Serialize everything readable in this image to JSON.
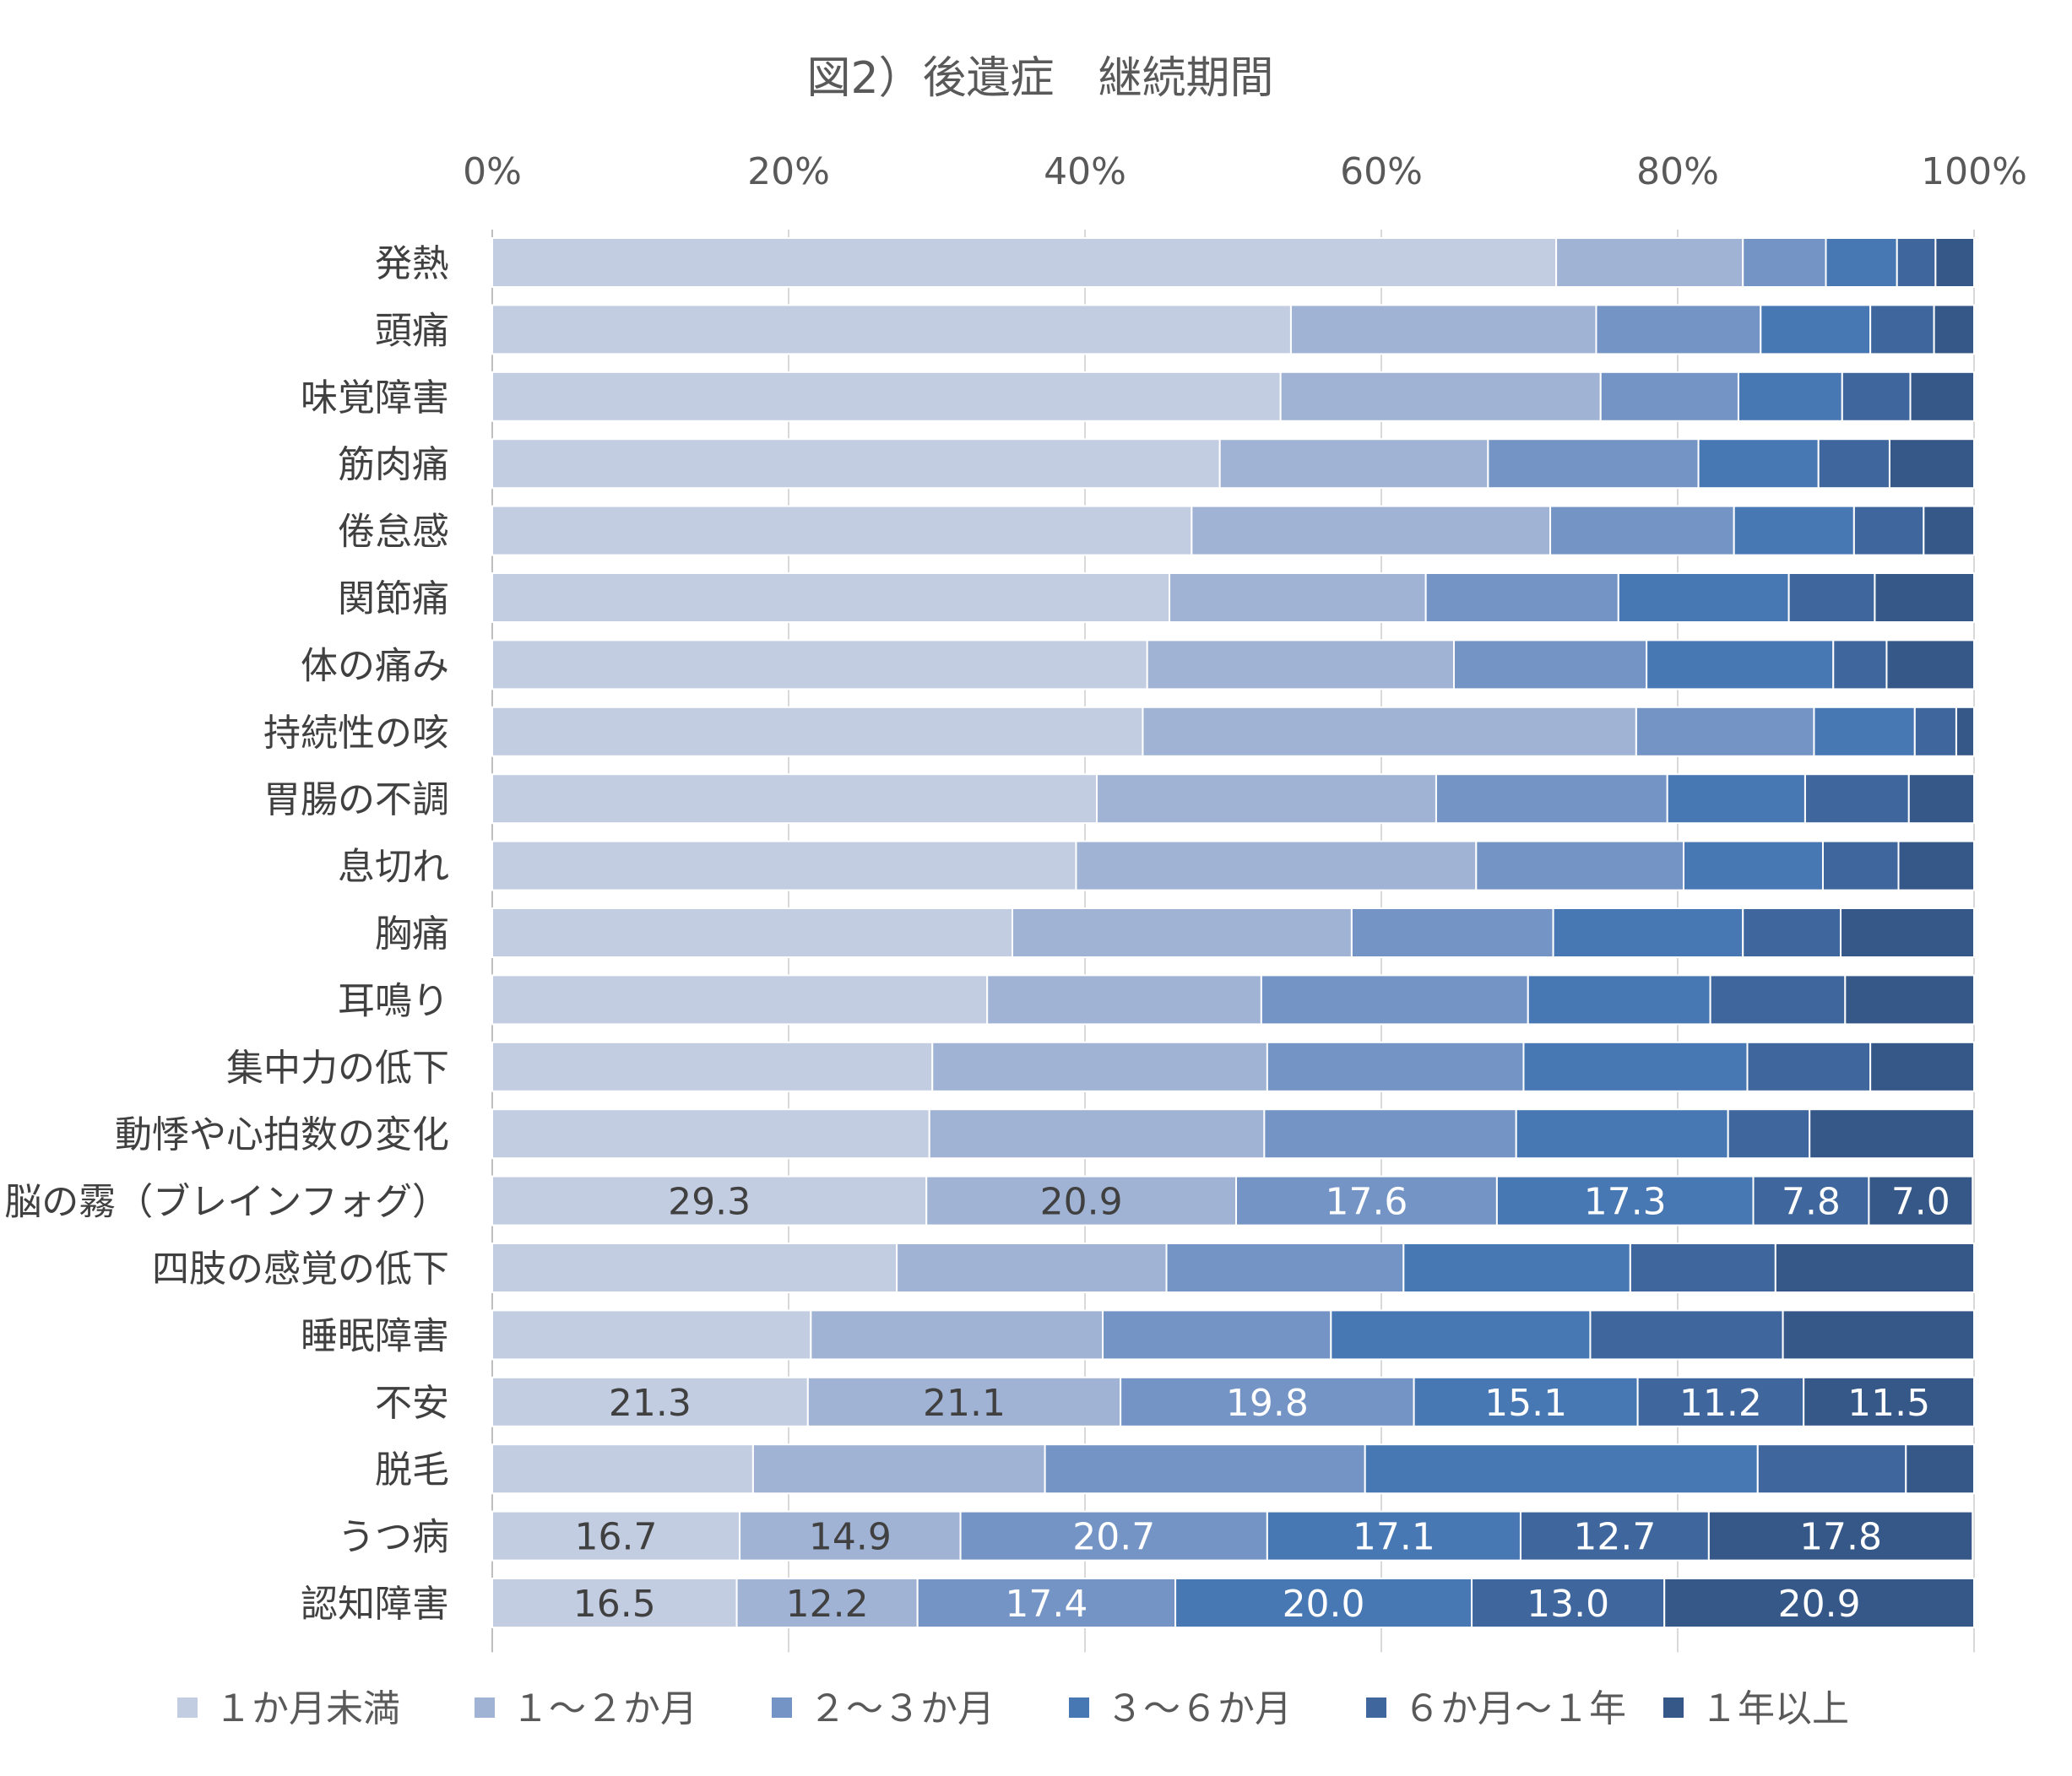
{
  "chart_data": {
    "type": "bar",
    "orientation": "horizontal",
    "stacked": "percent",
    "title": "図2）後遺症　継続期間",
    "xlim": [
      0,
      100
    ],
    "x_ticks": [
      "0%",
      "20%",
      "40%",
      "60%",
      "80%",
      "100%"
    ],
    "x_axis_position": "top",
    "grid": true,
    "legend_position": "bottom",
    "categories": [
      "発熱",
      "頭痛",
      "味覚障害",
      "筋肉痛",
      "倦怠感",
      "関節痛",
      "体の痛み",
      "持続性の咳",
      "胃腸の不調",
      "息切れ",
      "胸痛",
      "耳鳴り",
      "集中力の低下",
      "動悸や心拍数の変化",
      "脳の霧（ブレインフォグ）",
      "四肢の感覚の低下",
      "睡眠障害",
      "不安",
      "脱毛",
      "うつ病",
      "認知障害"
    ],
    "series": [
      {
        "name": "１か月未満",
        "color": "#c3cde2",
        "values": [
          71.8,
          53.9,
          53.2,
          49.1,
          47.2,
          45.7,
          44.2,
          43.9,
          40.8,
          39.4,
          35.1,
          33.4,
          29.7,
          29.5,
          29.3,
          27.3,
          21.5,
          21.3,
          17.6,
          16.7,
          16.5
        ]
      },
      {
        "name": "１～２か月",
        "color": "#a1b3d4",
        "values": [
          12.6,
          20.6,
          21.6,
          18.1,
          24.2,
          17.3,
          20.7,
          33.3,
          22.9,
          27.0,
          22.9,
          18.5,
          22.6,
          22.6,
          20.9,
          18.2,
          19.7,
          21.1,
          19.7,
          14.9,
          12.2
        ]
      },
      {
        "name": "２～３か月",
        "color": "#7494c5",
        "values": [
          5.6,
          11.1,
          9.3,
          14.2,
          12.4,
          13.0,
          13.0,
          12.0,
          15.6,
          14.0,
          13.6,
          18.0,
          17.3,
          17.0,
          17.6,
          16.0,
          15.4,
          19.8,
          21.6,
          20.7,
          17.4
        ]
      },
      {
        "name": "３～６か月",
        "color": "#4878b3",
        "values": [
          4.8,
          7.4,
          7.0,
          8.1,
          8.1,
          11.5,
          12.6,
          6.8,
          9.3,
          9.4,
          12.8,
          12.3,
          15.1,
          14.3,
          17.3,
          15.3,
          17.5,
          15.1,
          26.5,
          17.1,
          20.0
        ]
      },
      {
        "name": "６か月～１年",
        "color": "#3f679e",
        "values": [
          2.6,
          4.3,
          4.6,
          4.8,
          4.7,
          5.8,
          3.6,
          2.8,
          7.0,
          5.1,
          6.6,
          9.1,
          8.3,
          5.5,
          7.8,
          9.8,
          13.0,
          11.2,
          10.0,
          12.7,
          13.0
        ]
      },
      {
        "name": "１年以上",
        "color": "#355888",
        "values": [
          2.6,
          2.7,
          4.3,
          5.7,
          3.4,
          6.7,
          5.9,
          1.2,
          4.4,
          5.1,
          9.0,
          8.7,
          7.0,
          11.1,
          7.0,
          13.4,
          12.9,
          11.5,
          4.6,
          17.8,
          20.9
        ]
      }
    ],
    "data_labels": [
      {
        "category": "脳の霧（ブレインフォグ）",
        "labels": [
          "29.3",
          "20.9",
          "17.6",
          "17.3",
          "7.8",
          "7.0"
        ]
      },
      {
        "category": "不安",
        "labels": [
          "21.3",
          "21.1",
          "19.8",
          "15.1",
          "11.2",
          "11.5"
        ]
      },
      {
        "category": "うつ病",
        "labels": [
          "16.7",
          "14.9",
          "20.7",
          "17.1",
          "12.7",
          "17.8"
        ]
      },
      {
        "category": "認知障害",
        "labels": [
          "16.5",
          "12.2",
          "17.4",
          "20.0",
          "13.0",
          "20.9"
        ]
      }
    ]
  }
}
